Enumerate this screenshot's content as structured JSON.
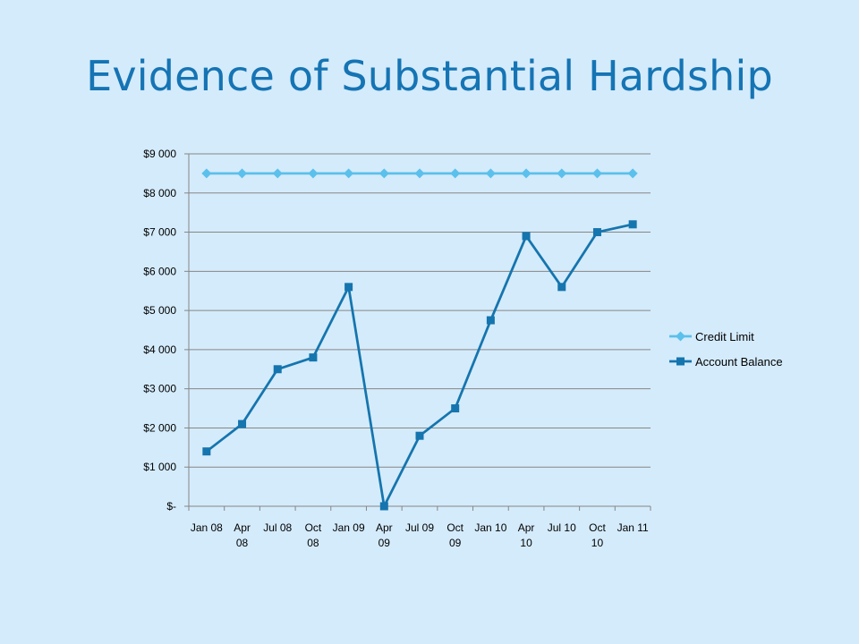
{
  "slide": {
    "title": "Evidence of Substantial Hardship"
  },
  "colors": {
    "background": "#d4ebfb",
    "title": "#1574b4",
    "credit_limit": "#5bc0eb",
    "account_balance": "#1575ae",
    "gridline": "#868686"
  },
  "chart_data": {
    "type": "line",
    "title": "",
    "xlabel": "",
    "ylabel": "",
    "categories": [
      "Jan 08",
      "Apr 08",
      "Jul 08",
      "Oct 08",
      "Jan 09",
      "Apr 09",
      "Jul 09",
      "Oct 09",
      "Jan 10",
      "Apr 10",
      "Jul 10",
      "Oct 10",
      "Jan 11"
    ],
    "y_tick_labels": [
      "$-",
      "$1 000",
      "$2 000",
      "$3 000",
      "$4 000",
      "$5 000",
      "$6 000",
      "$7 000",
      "$8 000",
      "$9 000"
    ],
    "ylim": [
      0,
      9000
    ],
    "y_step": 1000,
    "grid": true,
    "legend_position": "right",
    "series": [
      {
        "name": "Credit Limit",
        "marker": "diamond",
        "values": [
          8500,
          8500,
          8500,
          8500,
          8500,
          8500,
          8500,
          8500,
          8500,
          8500,
          8500,
          8500,
          8500
        ]
      },
      {
        "name": "Account Balance",
        "marker": "square",
        "values": [
          1400,
          2100,
          3500,
          3800,
          5600,
          0,
          1800,
          2500,
          4750,
          6900,
          5600,
          7000,
          7200
        ]
      }
    ]
  }
}
